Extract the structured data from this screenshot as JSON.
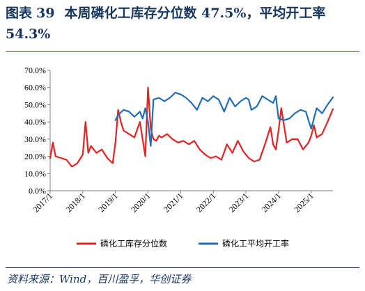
{
  "header": {
    "figure_label": "图表",
    "figure_number": "39",
    "title_text": "本周磷化工库存分位数 47.5%，平均开工率 54.3%"
  },
  "source": "资料来源：Wind，百川盈孚，华创证券",
  "chart_data": {
    "type": "line",
    "title": "本周磷化工库存分位数 47.5%，平均开工率 54.3%",
    "xlabel": "",
    "ylabel": "",
    "x_range": [
      "2017-01",
      "2025-09"
    ],
    "ylim": [
      0,
      70
    ],
    "y_ticks": [
      0,
      10,
      20,
      30,
      40,
      50,
      60,
      70
    ],
    "y_tick_labels": [
      "0.0%",
      "10.0%",
      "20.0%",
      "30.0%",
      "40.0%",
      "50.0%",
      "60.0%",
      "70.0%"
    ],
    "x_ticks": [
      "2017-01",
      "2018-01",
      "2019-01",
      "2020-01",
      "2021-01",
      "2022-01",
      "2023-01",
      "2024-01",
      "2025-01"
    ],
    "x_tick_labels": [
      "2017/1",
      "2018/1",
      "2019/1",
      "2020/1",
      "2021/1",
      "2022/1",
      "2023/1",
      "2024/1",
      "2025/1"
    ],
    "grid": false,
    "legend_position": "bottom",
    "series": [
      {
        "name": "磷化工库存分位数",
        "color": "#e32222",
        "x": [
          "2017-01",
          "2017-02",
          "2017-03",
          "2017-05",
          "2017-07",
          "2017-09",
          "2017-11",
          "2018-01",
          "2018-02",
          "2018-03",
          "2018-04",
          "2018-06",
          "2018-08",
          "2018-10",
          "2018-12",
          "2019-01",
          "2019-02",
          "2019-03",
          "2019-04",
          "2019-06",
          "2019-08",
          "2019-10",
          "2019-12",
          "2020-01",
          "2020-02",
          "2020-03",
          "2020-04",
          "2020-05",
          "2020-06",
          "2020-08",
          "2020-10",
          "2020-12",
          "2021-02",
          "2021-04",
          "2021-06",
          "2021-08",
          "2021-10",
          "2021-12",
          "2022-02",
          "2022-04",
          "2022-06",
          "2022-08",
          "2022-10",
          "2022-12",
          "2023-02",
          "2023-04",
          "2023-06",
          "2023-08",
          "2023-10",
          "2023-11",
          "2023-12",
          "2024-01",
          "2024-02",
          "2024-04",
          "2024-06",
          "2024-08",
          "2024-10",
          "2024-12",
          "2025-01",
          "2025-02",
          "2025-03",
          "2025-05",
          "2025-07",
          "2025-09"
        ],
        "values": [
          19,
          28,
          20,
          19,
          18,
          14,
          16,
          21,
          40,
          22,
          26,
          22,
          24,
          19,
          16,
          28,
          47,
          40,
          35,
          33,
          31,
          40,
          20,
          60,
          36,
          30,
          29,
          32,
          31,
          33,
          30,
          28,
          29,
          27,
          29,
          24,
          21,
          19,
          20,
          18,
          27,
          22,
          29,
          23,
          19,
          17,
          18,
          27,
          37,
          27,
          24,
          35,
          48,
          28,
          30,
          30,
          24,
          28,
          32,
          38,
          31,
          33,
          40,
          47.5
        ]
      },
      {
        "name": "磷化工平均开工率",
        "color": "#1f6db6",
        "x": [
          "2019-01",
          "2019-02",
          "2019-04",
          "2019-06",
          "2019-08",
          "2019-10",
          "2019-11",
          "2019-12",
          "2020-01",
          "2020-02",
          "2020-03",
          "2020-05",
          "2020-07",
          "2020-09",
          "2020-11",
          "2021-01",
          "2021-03",
          "2021-05",
          "2021-07",
          "2021-09",
          "2021-11",
          "2022-01",
          "2022-03",
          "2022-05",
          "2022-07",
          "2022-09",
          "2022-11",
          "2023-01",
          "2023-02",
          "2023-03",
          "2023-05",
          "2023-07",
          "2023-09",
          "2023-11",
          "2023-12",
          "2024-01",
          "2024-03",
          "2024-05",
          "2024-07",
          "2024-09",
          "2024-11",
          "2025-01",
          "2025-03",
          "2025-05",
          "2025-07",
          "2025-09"
        ],
        "values": [
          41,
          44,
          47,
          46,
          43,
          46,
          42,
          48,
          40,
          26,
          53,
          54,
          52,
          54,
          57,
          56,
          54,
          51,
          47,
          54,
          52,
          55,
          53,
          46,
          54,
          49,
          52,
          54,
          53,
          47,
          49,
          55,
          53,
          51,
          55,
          42,
          41,
          42,
          45,
          47,
          46,
          36,
          48,
          45,
          50,
          54.3
        ]
      }
    ]
  }
}
